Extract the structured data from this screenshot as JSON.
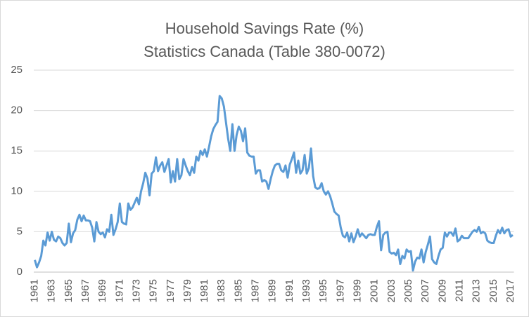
{
  "chart_data": {
    "type": "line",
    "title": "Household Savings Rate (%)",
    "subtitle": "Statistics Canada (Table 380-0072)",
    "categories": [
      "1961",
      null,
      null,
      null,
      null,
      null,
      null,
      null,
      "1963",
      null,
      null,
      null,
      null,
      null,
      null,
      null,
      "1965",
      null,
      null,
      null,
      null,
      null,
      null,
      null,
      "1967",
      null,
      null,
      null,
      null,
      null,
      null,
      null,
      "1969",
      null,
      null,
      null,
      null,
      null,
      null,
      null,
      "1971",
      null,
      null,
      null,
      null,
      null,
      null,
      null,
      "1973",
      null,
      null,
      null,
      null,
      null,
      null,
      null,
      "1975",
      null,
      null,
      null,
      null,
      null,
      null,
      null,
      "1977",
      null,
      null,
      null,
      null,
      null,
      null,
      null,
      "1979",
      null,
      null,
      null,
      null,
      null,
      null,
      null,
      "1981",
      null,
      null,
      null,
      null,
      null,
      null,
      null,
      "1983",
      null,
      null,
      null,
      null,
      null,
      null,
      null,
      "1985",
      null,
      null,
      null,
      null,
      null,
      null,
      null,
      "1987",
      null,
      null,
      null,
      null,
      null,
      null,
      null,
      "1989",
      null,
      null,
      null,
      null,
      null,
      null,
      null,
      "1991",
      null,
      null,
      null,
      null,
      null,
      null,
      null,
      "1993",
      null,
      null,
      null,
      null,
      null,
      null,
      null,
      "1995",
      null,
      null,
      null,
      null,
      null,
      null,
      null,
      "1997",
      null,
      null,
      null,
      null,
      null,
      null,
      null,
      "1999",
      null,
      null,
      null,
      null,
      null,
      null,
      null,
      "2001",
      null,
      null,
      null,
      null,
      null,
      null,
      null,
      "2003",
      null,
      null,
      null,
      null,
      null,
      null,
      null,
      "2005",
      null,
      null,
      null,
      null,
      null,
      null,
      null,
      "2007",
      null,
      null,
      null,
      null,
      null,
      null,
      null,
      "2009",
      null,
      null,
      null,
      null,
      null,
      null,
      null,
      "2011",
      null,
      null,
      null,
      null,
      null,
      null,
      null,
      "2013",
      null,
      null,
      null,
      null,
      null,
      null,
      null,
      "2015",
      null,
      null,
      null,
      null,
      null,
      null,
      null,
      "2017",
      null
    ],
    "series": [
      {
        "name": "Household Savings Rate",
        "color": "#5b9bd5",
        "values": [
          1.5,
          0.6,
          1.2,
          2.0,
          3.9,
          3.3,
          4.9,
          3.9,
          5.0,
          4.0,
          3.8,
          4.4,
          4.2,
          3.6,
          3.3,
          3.6,
          6.0,
          3.7,
          4.8,
          5.2,
          6.5,
          7.1,
          6.3,
          7.0,
          6.4,
          6.4,
          6.3,
          5.5,
          3.8,
          6.2,
          5.0,
          4.7,
          4.9,
          4.3,
          5.3,
          5.0,
          7.1,
          4.6,
          5.3,
          6.2,
          8.5,
          6.2,
          6.0,
          5.9,
          8.5,
          7.7,
          8.0,
          8.6,
          9.2,
          8.4,
          10.0,
          11.0,
          12.3,
          11.6,
          9.5,
          12.2,
          12.5,
          14.2,
          12.5,
          13.2,
          13.6,
          12.4,
          13.2,
          14.0,
          11.1,
          12.5,
          11.2,
          14.0,
          11.5,
          12.0,
          14.0,
          13.2,
          12.5,
          12.0,
          13.0,
          12.3,
          14.3,
          13.8,
          15.0,
          14.5,
          15.2,
          14.3,
          15.5,
          16.8,
          17.7,
          18.2,
          18.6,
          21.8,
          21.5,
          20.5,
          18.5,
          16.5,
          15.0,
          18.3,
          15.0,
          17.0,
          18.0,
          17.5,
          16.2,
          17.8,
          14.8,
          14.4,
          14.3,
          14.3,
          12.2,
          12.6,
          12.6,
          11.2,
          11.4,
          11.2,
          10.3,
          11.5,
          12.5,
          13.2,
          13.4,
          13.4,
          12.6,
          12.4,
          13.2,
          11.7,
          13.3,
          14.0,
          14.8,
          12.3,
          13.8,
          12.2,
          12.6,
          14.5,
          12.2,
          12.9,
          15.3,
          11.9,
          10.5,
          10.3,
          10.4,
          11.0,
          10.0,
          9.6,
          10.0,
          9.4,
          8.5,
          7.5,
          7.2,
          7.0,
          5.5,
          4.5,
          4.3,
          4.9,
          3.8,
          4.8,
          3.7,
          4.4,
          5.3,
          4.4,
          4.8,
          4.5,
          4.2,
          4.6,
          4.7,
          4.6,
          4.6,
          5.6,
          6.3,
          2.7,
          4.6,
          4.9,
          5.0,
          2.5,
          2.3,
          2.4,
          2.1,
          2.8,
          1.0,
          2.0,
          1.7,
          2.8,
          2.5,
          2.6,
          0.2,
          1.3,
          1.8,
          1.7,
          2.8,
          1.2,
          2.5,
          3.4,
          4.4,
          1.6,
          1.2,
          1.0,
          2.0,
          2.8,
          3.0,
          4.9,
          4.4,
          4.9,
          4.9,
          4.5,
          5.4,
          3.8,
          4.0,
          4.5,
          4.2,
          4.2,
          4.2,
          4.6,
          5.0,
          5.2,
          5.0,
          5.6,
          4.8,
          5.0,
          4.8,
          3.9,
          3.7,
          3.6,
          3.6,
          4.5,
          5.2,
          4.8,
          5.5,
          4.8,
          5.2,
          5.3,
          4.4,
          4.6
        ]
      }
    ],
    "ylim": [
      0,
      25
    ],
    "yticks": [
      0,
      5,
      10,
      15,
      20,
      25
    ],
    "grid": true
  }
}
